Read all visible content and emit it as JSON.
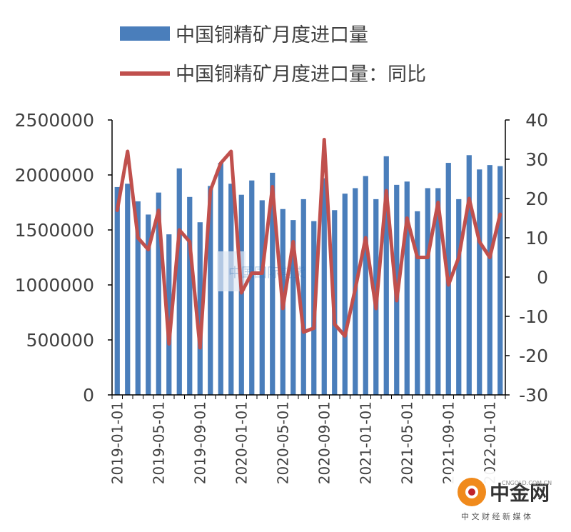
{
  "chart_data": {
    "type": "bar+line",
    "title": "",
    "legend": {
      "placement": "top",
      "items": [
        {
          "name": "中国铜精矿月度进口量",
          "kind": "bar",
          "color": "#4a7ebb"
        },
        {
          "name": "中国铜精矿月度进口量：同比",
          "kind": "line",
          "color": "#c0504d"
        }
      ]
    },
    "x_tick_labels": [
      "2019-01-01",
      "2019-05-01",
      "2019-09-01",
      "2020-01-01",
      "2020-05-01",
      "2020-09-01",
      "2021-01-01",
      "2021-05-01",
      "2021-09-01",
      "2022-01-01"
    ],
    "y_left": {
      "ylim": [
        0,
        2500000
      ],
      "ticks": [
        "0",
        "500000",
        "1000000",
        "1500000",
        "2000000",
        "2500000"
      ]
    },
    "y_right": {
      "ylim": [
        -30,
        40
      ],
      "ticks": [
        "-30",
        "-20",
        "-10",
        "0",
        "10",
        "20",
        "30",
        "40"
      ]
    },
    "x": [
      "2019-01",
      "2019-02",
      "2019-03",
      "2019-04",
      "2019-05",
      "2019-06",
      "2019-07",
      "2019-08",
      "2019-09",
      "2019-10",
      "2019-11",
      "2019-12",
      "2020-01",
      "2020-02",
      "2020-03",
      "2020-04",
      "2020-05",
      "2020-06",
      "2020-07",
      "2020-08",
      "2020-09",
      "2020-10",
      "2020-11",
      "2020-12",
      "2021-01",
      "2021-02",
      "2021-03",
      "2021-04",
      "2021-05",
      "2021-06",
      "2021-07",
      "2021-08",
      "2021-09",
      "2021-10",
      "2021-11",
      "2021-12",
      "2022-01",
      "2022-02"
    ],
    "series": [
      {
        "name": "中国铜精矿月度进口量",
        "kind": "bar",
        "axis": "left",
        "values": [
          1890000,
          1920000,
          1760000,
          1640000,
          1840000,
          1460000,
          2060000,
          1800000,
          1570000,
          1900000,
          2110000,
          1920000,
          1820000,
          1950000,
          1770000,
          2020000,
          1690000,
          1590000,
          1780000,
          1580000,
          1970000,
          1680000,
          1830000,
          1880000,
          1990000,
          1780000,
          2170000,
          1910000,
          1940000,
          1670000,
          1880000,
          1880000,
          2110000,
          1780000,
          2180000,
          2050000,
          2090000,
          2080000
        ]
      },
      {
        "name": "中国铜精矿月度进口量：同比",
        "kind": "line",
        "axis": "right",
        "values": [
          17,
          32,
          10,
          7,
          17,
          -17,
          12,
          9,
          -18,
          22,
          29,
          32,
          -4,
          1,
          1,
          23,
          -8,
          9,
          -14,
          -13,
          35,
          -12,
          -15,
          -3,
          10,
          -8,
          22,
          -6,
          15,
          5,
          5,
          19,
          -2,
          5,
          20,
          9,
          5,
          16
        ]
      }
    ]
  },
  "watermark": {
    "text": "中国国际期货"
  },
  "logo": {
    "brand": "中金网",
    "sub": "中 文 财 经 新 媒 体",
    "url": "CNGOLD.COM.CN"
  }
}
